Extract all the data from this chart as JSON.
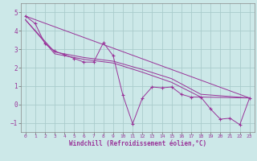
{
  "bg_color": "#cce8e8",
  "grid_color": "#aacccc",
  "line_color": "#993399",
  "marker_color": "#993399",
  "xlabel": "Windchill (Refroidissement éolien,°C)",
  "xlim": [
    -0.5,
    23.5
  ],
  "ylim": [
    -1.5,
    5.5
  ],
  "yticks": [
    -1,
    0,
    1,
    2,
    3,
    4,
    5
  ],
  "xticks": [
    0,
    1,
    2,
    3,
    4,
    5,
    6,
    7,
    8,
    9,
    10,
    11,
    12,
    13,
    14,
    15,
    16,
    17,
    18,
    19,
    20,
    21,
    22,
    23
  ],
  "series1_x": [
    0,
    1,
    2,
    3,
    4,
    5,
    6,
    7,
    8,
    9,
    10,
    11,
    12,
    13,
    14,
    15,
    16,
    17,
    18,
    19,
    20,
    21,
    22,
    23
  ],
  "series1_y": [
    4.8,
    4.4,
    3.3,
    2.9,
    2.7,
    2.5,
    2.3,
    2.3,
    3.35,
    2.65,
    0.5,
    -1.05,
    0.35,
    0.95,
    0.9,
    0.95,
    0.55,
    0.4,
    0.4,
    -0.25,
    -0.8,
    -0.75,
    -1.1,
    0.35
  ],
  "series2_x": [
    0,
    23
  ],
  "series2_y": [
    4.8,
    0.35
  ],
  "series3_x": [
    0,
    3,
    6,
    9,
    12,
    15,
    18,
    23
  ],
  "series3_y": [
    4.6,
    2.85,
    2.55,
    2.35,
    1.9,
    1.4,
    0.55,
    0.35
  ],
  "series4_x": [
    0,
    3,
    6,
    9,
    12,
    15,
    18,
    23
  ],
  "series4_y": [
    4.6,
    2.75,
    2.45,
    2.25,
    1.75,
    1.2,
    0.4,
    0.35
  ]
}
